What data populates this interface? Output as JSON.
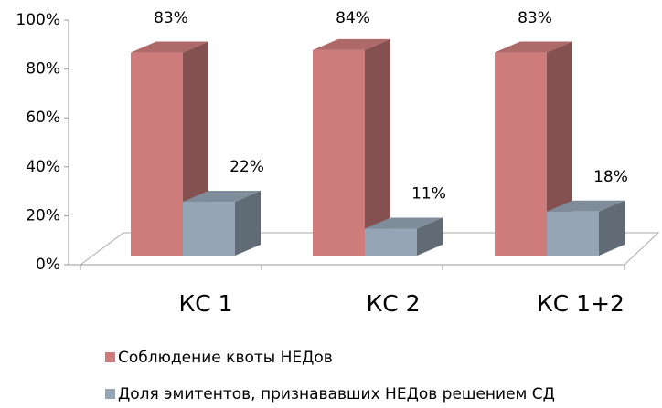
{
  "chart_data": {
    "type": "bar3d",
    "categories": [
      "КС 1",
      "КС 2",
      "КС 1+2"
    ],
    "series": [
      {
        "name": "Соблюдение квоты НЕДов",
        "color": "#cd7b7b",
        "values": [
          83,
          84,
          83
        ],
        "value_labels": [
          "83%",
          "84%",
          "83%"
        ]
      },
      {
        "name": "Доля эмитентов, признававших НЕДов решением СД",
        "color": "#95a5b5",
        "values": [
          22,
          11,
          18
        ],
        "value_labels": [
          "22%",
          "11%",
          "18%"
        ]
      }
    ],
    "ylim": [
      0,
      100
    ],
    "yticks": [
      {
        "value": 0,
        "label": "0%"
      },
      {
        "value": 20,
        "label": "20%"
      },
      {
        "value": 40,
        "label": "40%"
      },
      {
        "value": 60,
        "label": "60%"
      },
      {
        "value": 80,
        "label": "80%"
      },
      {
        "value": 100,
        "label": "100%"
      }
    ],
    "legend": "bottom"
  }
}
